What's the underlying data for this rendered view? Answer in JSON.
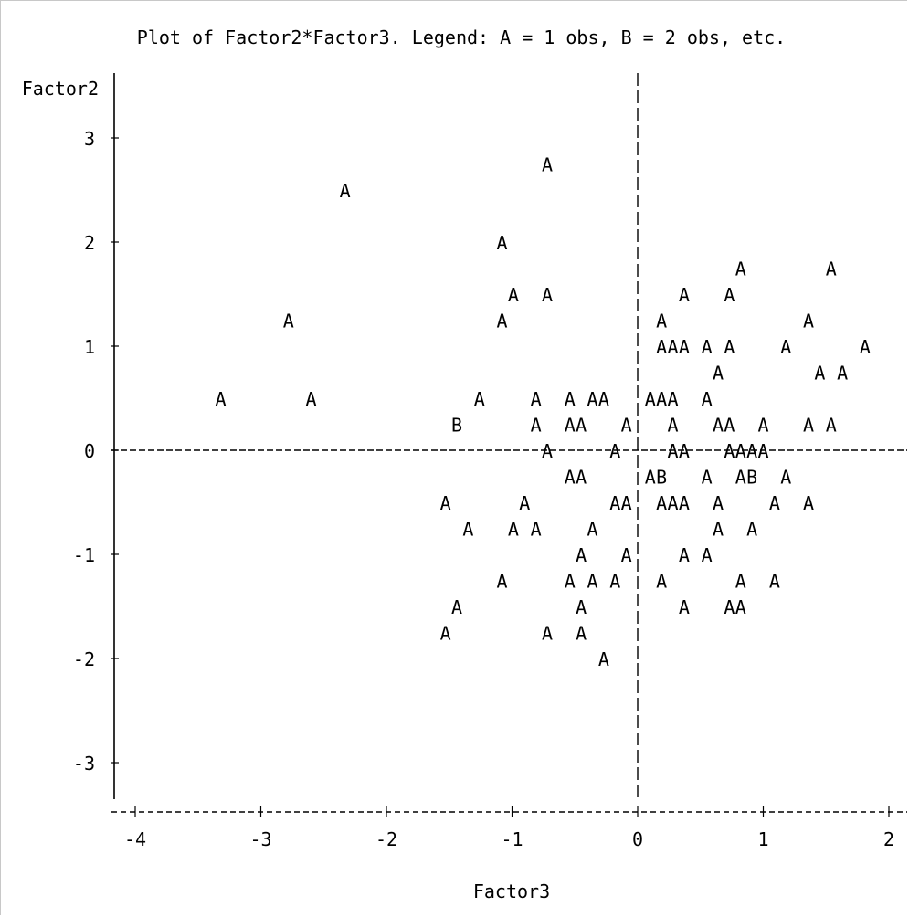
{
  "chart_data": {
    "type": "scatter",
    "title": "Plot of Factor2*Factor3.  Legend: A = 1 obs, B = 2 obs, etc.",
    "xlabel": "Factor3",
    "ylabel": "Factor2",
    "xlim": [
      -4.17,
      2.13
    ],
    "ylim": [
      -3.5,
      3.55
    ],
    "x_ticks": [
      -4,
      -3,
      -2,
      -1,
      0,
      1,
      2
    ],
    "y_ticks": [
      3,
      2,
      1,
      0,
      -1,
      -2,
      -3
    ],
    "x_tick_labels": [
      "-4",
      "-3",
      "-2",
      "-1",
      "0",
      "1",
      "2"
    ],
    "y_tick_labels": [
      "3",
      "2",
      "1",
      "0",
      "-1",
      "-2",
      "-3"
    ],
    "reference_lines": {
      "x": 0,
      "y": 0
    },
    "legend": {
      "A": 1,
      "B": 2
    },
    "points": [
      {
        "x": -0.72,
        "y": 2.75,
        "symbol": "A"
      },
      {
        "x": -2.33,
        "y": 2.5,
        "symbol": "A"
      },
      {
        "x": -1.08,
        "y": 2.0,
        "symbol": "A"
      },
      {
        "x": 0.82,
        "y": 1.75,
        "symbol": "A"
      },
      {
        "x": 1.54,
        "y": 1.75,
        "symbol": "A"
      },
      {
        "x": -0.99,
        "y": 1.5,
        "symbol": "A"
      },
      {
        "x": -0.72,
        "y": 1.5,
        "symbol": "A"
      },
      {
        "x": 0.37,
        "y": 1.5,
        "symbol": "A"
      },
      {
        "x": 0.73,
        "y": 1.5,
        "symbol": "A"
      },
      {
        "x": -2.78,
        "y": 1.25,
        "symbol": "A"
      },
      {
        "x": -1.08,
        "y": 1.25,
        "symbol": "A"
      },
      {
        "x": 0.19,
        "y": 1.25,
        "symbol": "A"
      },
      {
        "x": 1.36,
        "y": 1.25,
        "symbol": "A"
      },
      {
        "x": 0.19,
        "y": 1.0,
        "symbol": "A"
      },
      {
        "x": 0.28,
        "y": 1.0,
        "symbol": "A"
      },
      {
        "x": 0.37,
        "y": 1.0,
        "symbol": "A"
      },
      {
        "x": 0.55,
        "y": 1.0,
        "symbol": "A"
      },
      {
        "x": 0.73,
        "y": 1.0,
        "symbol": "A"
      },
      {
        "x": 1.18,
        "y": 1.0,
        "symbol": "A"
      },
      {
        "x": 1.81,
        "y": 1.0,
        "symbol": "A"
      },
      {
        "x": 0.64,
        "y": 0.75,
        "symbol": "A"
      },
      {
        "x": 1.45,
        "y": 0.75,
        "symbol": "A"
      },
      {
        "x": 1.63,
        "y": 0.75,
        "symbol": "A"
      },
      {
        "x": -3.32,
        "y": 0.5,
        "symbol": "A"
      },
      {
        "x": -2.6,
        "y": 0.5,
        "symbol": "A"
      },
      {
        "x": -1.26,
        "y": 0.5,
        "symbol": "A"
      },
      {
        "x": -0.81,
        "y": 0.5,
        "symbol": "A"
      },
      {
        "x": -0.54,
        "y": 0.5,
        "symbol": "A"
      },
      {
        "x": -0.36,
        "y": 0.5,
        "symbol": "A"
      },
      {
        "x": -0.27,
        "y": 0.5,
        "symbol": "A"
      },
      {
        "x": 0.1,
        "y": 0.5,
        "symbol": "A"
      },
      {
        "x": 0.19,
        "y": 0.5,
        "symbol": "A"
      },
      {
        "x": 0.28,
        "y": 0.5,
        "symbol": "A"
      },
      {
        "x": 0.55,
        "y": 0.5,
        "symbol": "A"
      },
      {
        "x": -1.44,
        "y": 0.25,
        "symbol": "B"
      },
      {
        "x": -0.81,
        "y": 0.25,
        "symbol": "A"
      },
      {
        "x": -0.54,
        "y": 0.25,
        "symbol": "A"
      },
      {
        "x": -0.45,
        "y": 0.25,
        "symbol": "A"
      },
      {
        "x": -0.09,
        "y": 0.25,
        "symbol": "A"
      },
      {
        "x": 0.28,
        "y": 0.25,
        "symbol": "A"
      },
      {
        "x": 0.64,
        "y": 0.25,
        "symbol": "A"
      },
      {
        "x": 0.73,
        "y": 0.25,
        "symbol": "A"
      },
      {
        "x": 1.0,
        "y": 0.25,
        "symbol": "A"
      },
      {
        "x": 1.36,
        "y": 0.25,
        "symbol": "A"
      },
      {
        "x": 1.54,
        "y": 0.25,
        "symbol": "A"
      },
      {
        "x": -0.72,
        "y": 0.0,
        "symbol": "A"
      },
      {
        "x": -0.18,
        "y": 0.0,
        "symbol": "A"
      },
      {
        "x": 0.28,
        "y": 0.0,
        "symbol": "A"
      },
      {
        "x": 0.37,
        "y": 0.0,
        "symbol": "A"
      },
      {
        "x": 0.73,
        "y": 0.0,
        "symbol": "A"
      },
      {
        "x": 0.82,
        "y": 0.0,
        "symbol": "A"
      },
      {
        "x": 0.91,
        "y": 0.0,
        "symbol": "A"
      },
      {
        "x": 1.0,
        "y": 0.0,
        "symbol": "A"
      },
      {
        "x": -0.54,
        "y": -0.25,
        "symbol": "A"
      },
      {
        "x": -0.45,
        "y": -0.25,
        "symbol": "A"
      },
      {
        "x": 0.1,
        "y": -0.25,
        "symbol": "A"
      },
      {
        "x": 0.19,
        "y": -0.25,
        "symbol": "B"
      },
      {
        "x": 0.55,
        "y": -0.25,
        "symbol": "A"
      },
      {
        "x": 0.82,
        "y": -0.25,
        "symbol": "A"
      },
      {
        "x": 0.91,
        "y": -0.25,
        "symbol": "B"
      },
      {
        "x": 1.18,
        "y": -0.25,
        "symbol": "A"
      },
      {
        "x": -1.53,
        "y": -0.5,
        "symbol": "A"
      },
      {
        "x": -0.9,
        "y": -0.5,
        "symbol": "A"
      },
      {
        "x": -0.18,
        "y": -0.5,
        "symbol": "A"
      },
      {
        "x": -0.09,
        "y": -0.5,
        "symbol": "A"
      },
      {
        "x": 0.19,
        "y": -0.5,
        "symbol": "A"
      },
      {
        "x": 0.28,
        "y": -0.5,
        "symbol": "A"
      },
      {
        "x": 0.37,
        "y": -0.5,
        "symbol": "A"
      },
      {
        "x": 0.64,
        "y": -0.5,
        "symbol": "A"
      },
      {
        "x": 1.09,
        "y": -0.5,
        "symbol": "A"
      },
      {
        "x": 1.36,
        "y": -0.5,
        "symbol": "A"
      },
      {
        "x": -1.35,
        "y": -0.75,
        "symbol": "A"
      },
      {
        "x": -0.99,
        "y": -0.75,
        "symbol": "A"
      },
      {
        "x": -0.81,
        "y": -0.75,
        "symbol": "A"
      },
      {
        "x": -0.36,
        "y": -0.75,
        "symbol": "A"
      },
      {
        "x": 0.64,
        "y": -0.75,
        "symbol": "A"
      },
      {
        "x": 0.91,
        "y": -0.75,
        "symbol": "A"
      },
      {
        "x": -0.45,
        "y": -1.0,
        "symbol": "A"
      },
      {
        "x": -0.09,
        "y": -1.0,
        "symbol": "A"
      },
      {
        "x": 0.37,
        "y": -1.0,
        "symbol": "A"
      },
      {
        "x": 0.55,
        "y": -1.0,
        "symbol": "A"
      },
      {
        "x": -1.08,
        "y": -1.25,
        "symbol": "A"
      },
      {
        "x": -0.54,
        "y": -1.25,
        "symbol": "A"
      },
      {
        "x": -0.36,
        "y": -1.25,
        "symbol": "A"
      },
      {
        "x": -0.18,
        "y": -1.25,
        "symbol": "A"
      },
      {
        "x": 0.19,
        "y": -1.25,
        "symbol": "A"
      },
      {
        "x": 0.82,
        "y": -1.25,
        "symbol": "A"
      },
      {
        "x": 1.09,
        "y": -1.25,
        "symbol": "A"
      },
      {
        "x": -1.44,
        "y": -1.5,
        "symbol": "A"
      },
      {
        "x": -0.45,
        "y": -1.5,
        "symbol": "A"
      },
      {
        "x": 0.37,
        "y": -1.5,
        "symbol": "A"
      },
      {
        "x": 0.73,
        "y": -1.5,
        "symbol": "A"
      },
      {
        "x": 0.82,
        "y": -1.5,
        "symbol": "A"
      },
      {
        "x": -1.53,
        "y": -1.75,
        "symbol": "A"
      },
      {
        "x": -0.72,
        "y": -1.75,
        "symbol": "A"
      },
      {
        "x": -0.45,
        "y": -1.75,
        "symbol": "A"
      },
      {
        "x": -0.27,
        "y": -2.0,
        "symbol": "A"
      }
    ]
  }
}
